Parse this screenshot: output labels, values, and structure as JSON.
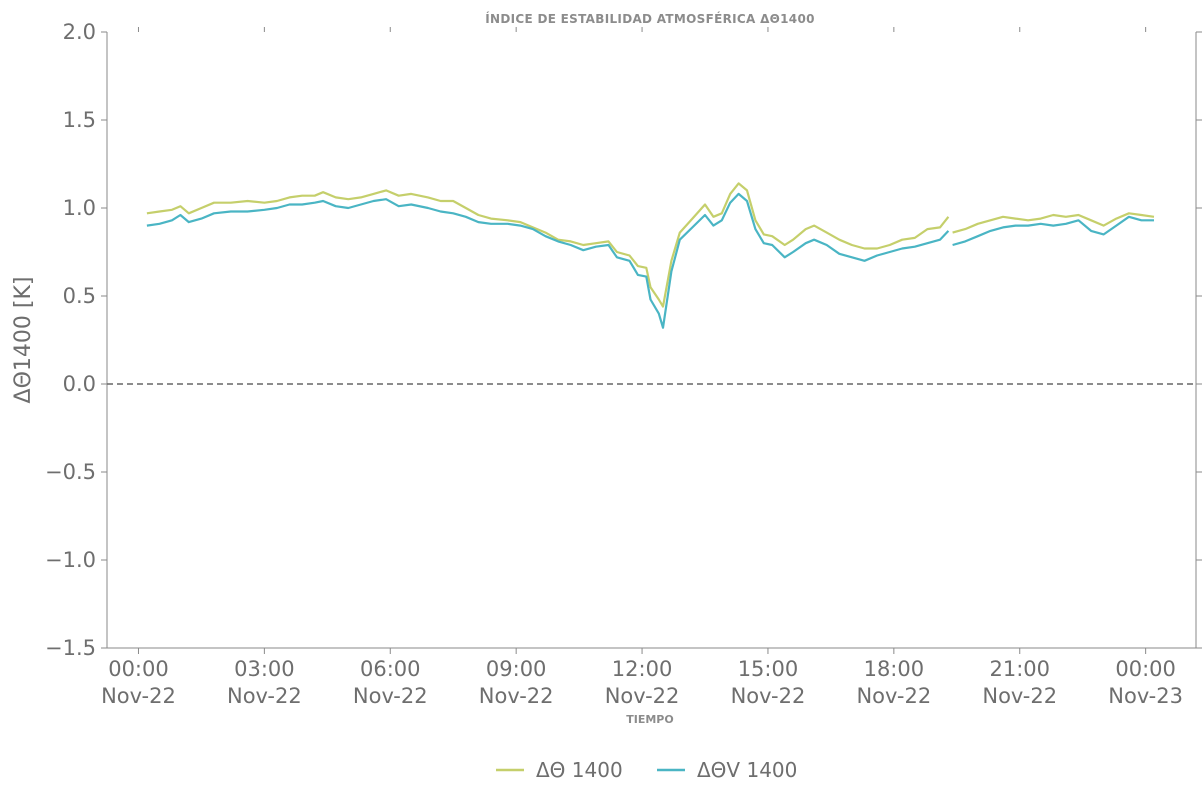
{
  "chart_data": {
    "type": "line",
    "title": "ÍNDICE DE ESTABILIDAD ATMOSFÉRICA ΔΘ1400",
    "xlabel": "TIEMPO",
    "ylabel": "ΔΘ1400 [K]",
    "ylim": [
      -1.5,
      2.0
    ],
    "xlim_hours": [
      -0.75,
      25.2
    ],
    "yticks": [
      -1.5,
      -1.0,
      -0.5,
      0.0,
      0.5,
      1.0,
      1.5,
      2.0
    ],
    "ytick_labels": [
      "−1.5",
      "−1.0",
      "−0.5",
      "0.0",
      "0.5",
      "1.0",
      "1.5",
      "2.0"
    ],
    "xticks": [
      {
        "hours": 0,
        "time": "00:00",
        "date": "Nov-22"
      },
      {
        "hours": 3,
        "time": "03:00",
        "date": "Nov-22"
      },
      {
        "hours": 6,
        "time": "06:00",
        "date": "Nov-22"
      },
      {
        "hours": 9,
        "time": "09:00",
        "date": "Nov-22"
      },
      {
        "hours": 12,
        "time": "12:00",
        "date": "Nov-22"
      },
      {
        "hours": 15,
        "time": "15:00",
        "date": "Nov-22"
      },
      {
        "hours": 18,
        "time": "18:00",
        "date": "Nov-22"
      },
      {
        "hours": 21,
        "time": "21:00",
        "date": "Nov-22"
      },
      {
        "hours": 24,
        "time": "00:00",
        "date": "Nov-23"
      }
    ],
    "reference_line": {
      "y": 0.0,
      "style": "dashed",
      "color": "#666666"
    },
    "grid": false,
    "legend_position": "bottom-center",
    "series": [
      {
        "name": "ΔΘ 1400",
        "color": "#c5cf6b",
        "segments": [
          [
            [
              0.2,
              0.97
            ],
            [
              0.5,
              0.98
            ],
            [
              0.8,
              0.99
            ],
            [
              1.0,
              1.01
            ],
            [
              1.2,
              0.97
            ],
            [
              1.5,
              1.0
            ],
            [
              1.8,
              1.03
            ],
            [
              2.2,
              1.03
            ],
            [
              2.6,
              1.04
            ],
            [
              3.0,
              1.03
            ],
            [
              3.3,
              1.04
            ],
            [
              3.6,
              1.06
            ],
            [
              3.9,
              1.07
            ],
            [
              4.2,
              1.07
            ],
            [
              4.4,
              1.09
            ],
            [
              4.7,
              1.06
            ],
            [
              5.0,
              1.05
            ],
            [
              5.3,
              1.06
            ],
            [
              5.6,
              1.08
            ],
            [
              5.9,
              1.1
            ],
            [
              6.2,
              1.07
            ],
            [
              6.5,
              1.08
            ],
            [
              6.9,
              1.06
            ],
            [
              7.2,
              1.04
            ],
            [
              7.5,
              1.04
            ],
            [
              7.8,
              1.0
            ],
            [
              8.1,
              0.96
            ],
            [
              8.4,
              0.94
            ],
            [
              8.8,
              0.93
            ],
            [
              9.1,
              0.92
            ],
            [
              9.4,
              0.89
            ],
            [
              9.7,
              0.86
            ],
            [
              10.0,
              0.82
            ],
            [
              10.3,
              0.81
            ],
            [
              10.6,
              0.79
            ],
            [
              10.9,
              0.8
            ],
            [
              11.2,
              0.81
            ],
            [
              11.4,
              0.75
            ],
            [
              11.7,
              0.73
            ],
            [
              11.9,
              0.67
            ],
            [
              12.1,
              0.66
            ],
            [
              12.2,
              0.55
            ],
            [
              12.4,
              0.48
            ],
            [
              12.5,
              0.44
            ],
            [
              12.7,
              0.7
            ],
            [
              12.9,
              0.86
            ],
            [
              13.2,
              0.94
            ],
            [
              13.5,
              1.02
            ],
            [
              13.7,
              0.95
            ],
            [
              13.9,
              0.97
            ],
            [
              14.1,
              1.08
            ],
            [
              14.3,
              1.14
            ],
            [
              14.5,
              1.1
            ],
            [
              14.7,
              0.93
            ],
            [
              14.9,
              0.85
            ],
            [
              15.1,
              0.84
            ],
            [
              15.4,
              0.79
            ],
            [
              15.6,
              0.82
            ],
            [
              15.9,
              0.88
            ],
            [
              16.1,
              0.9
            ],
            [
              16.4,
              0.86
            ],
            [
              16.7,
              0.82
            ],
            [
              17.0,
              0.79
            ],
            [
              17.3,
              0.77
            ],
            [
              17.6,
              0.77
            ],
            [
              17.9,
              0.79
            ],
            [
              18.2,
              0.82
            ],
            [
              18.5,
              0.83
            ],
            [
              18.8,
              0.88
            ],
            [
              19.1,
              0.89
            ],
            [
              19.3,
              0.95
            ]
          ],
          [
            [
              19.4,
              0.86
            ],
            [
              19.7,
              0.88
            ],
            [
              20.0,
              0.91
            ],
            [
              20.3,
              0.93
            ],
            [
              20.6,
              0.95
            ],
            [
              20.9,
              0.94
            ],
            [
              21.2,
              0.93
            ],
            [
              21.5,
              0.94
            ],
            [
              21.8,
              0.96
            ],
            [
              22.1,
              0.95
            ],
            [
              22.4,
              0.96
            ],
            [
              22.7,
              0.93
            ],
            [
              23.0,
              0.9
            ],
            [
              23.3,
              0.94
            ],
            [
              23.6,
              0.97
            ],
            [
              23.9,
              0.96
            ],
            [
              24.2,
              0.95
            ]
          ]
        ]
      },
      {
        "name": "ΔΘV 1400",
        "color": "#4ab5c4",
        "segments": [
          [
            [
              0.2,
              0.9
            ],
            [
              0.5,
              0.91
            ],
            [
              0.8,
              0.93
            ],
            [
              1.0,
              0.96
            ],
            [
              1.2,
              0.92
            ],
            [
              1.5,
              0.94
            ],
            [
              1.8,
              0.97
            ],
            [
              2.2,
              0.98
            ],
            [
              2.6,
              0.98
            ],
            [
              3.0,
              0.99
            ],
            [
              3.3,
              1.0
            ],
            [
              3.6,
              1.02
            ],
            [
              3.9,
              1.02
            ],
            [
              4.2,
              1.03
            ],
            [
              4.4,
              1.04
            ],
            [
              4.7,
              1.01
            ],
            [
              5.0,
              1.0
            ],
            [
              5.3,
              1.02
            ],
            [
              5.6,
              1.04
            ],
            [
              5.9,
              1.05
            ],
            [
              6.2,
              1.01
            ],
            [
              6.5,
              1.02
            ],
            [
              6.9,
              1.0
            ],
            [
              7.2,
              0.98
            ],
            [
              7.5,
              0.97
            ],
            [
              7.8,
              0.95
            ],
            [
              8.1,
              0.92
            ],
            [
              8.4,
              0.91
            ],
            [
              8.8,
              0.91
            ],
            [
              9.1,
              0.9
            ],
            [
              9.4,
              0.88
            ],
            [
              9.7,
              0.84
            ],
            [
              10.0,
              0.81
            ],
            [
              10.3,
              0.79
            ],
            [
              10.6,
              0.76
            ],
            [
              10.9,
              0.78
            ],
            [
              11.2,
              0.79
            ],
            [
              11.4,
              0.72
            ],
            [
              11.7,
              0.7
            ],
            [
              11.9,
              0.62
            ],
            [
              12.1,
              0.61
            ],
            [
              12.2,
              0.48
            ],
            [
              12.4,
              0.4
            ],
            [
              12.5,
              0.32
            ],
            [
              12.7,
              0.64
            ],
            [
              12.9,
              0.82
            ],
            [
              13.2,
              0.89
            ],
            [
              13.5,
              0.96
            ],
            [
              13.7,
              0.9
            ],
            [
              13.9,
              0.93
            ],
            [
              14.1,
              1.03
            ],
            [
              14.3,
              1.08
            ],
            [
              14.5,
              1.04
            ],
            [
              14.7,
              0.88
            ],
            [
              14.9,
              0.8
            ],
            [
              15.1,
              0.79
            ],
            [
              15.4,
              0.72
            ],
            [
              15.6,
              0.75
            ],
            [
              15.9,
              0.8
            ],
            [
              16.1,
              0.82
            ],
            [
              16.4,
              0.79
            ],
            [
              16.7,
              0.74
            ],
            [
              17.0,
              0.72
            ],
            [
              17.3,
              0.7
            ],
            [
              17.6,
              0.73
            ],
            [
              17.9,
              0.75
            ],
            [
              18.2,
              0.77
            ],
            [
              18.5,
              0.78
            ],
            [
              18.8,
              0.8
            ],
            [
              19.1,
              0.82
            ],
            [
              19.3,
              0.87
            ]
          ],
          [
            [
              19.4,
              0.79
            ],
            [
              19.7,
              0.81
            ],
            [
              20.0,
              0.84
            ],
            [
              20.3,
              0.87
            ],
            [
              20.6,
              0.89
            ],
            [
              20.9,
              0.9
            ],
            [
              21.2,
              0.9
            ],
            [
              21.5,
              0.91
            ],
            [
              21.8,
              0.9
            ],
            [
              22.1,
              0.91
            ],
            [
              22.4,
              0.93
            ],
            [
              22.7,
              0.87
            ],
            [
              23.0,
              0.85
            ],
            [
              23.3,
              0.9
            ],
            [
              23.6,
              0.95
            ],
            [
              23.9,
              0.93
            ],
            [
              24.2,
              0.93
            ]
          ]
        ]
      }
    ]
  }
}
